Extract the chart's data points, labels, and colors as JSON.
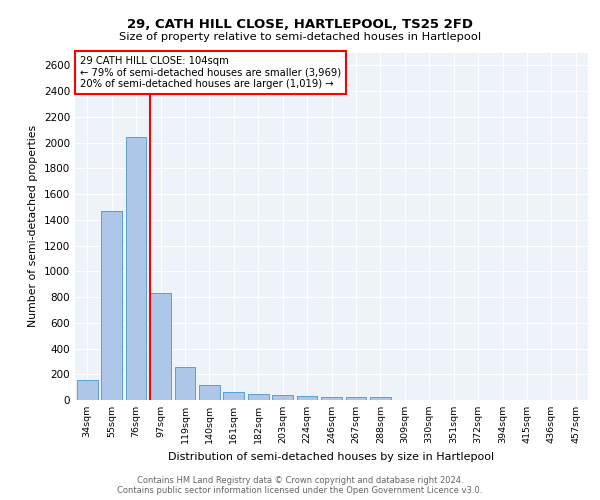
{
  "title1": "29, CATH HILL CLOSE, HARTLEPOOL, TS25 2FD",
  "title2": "Size of property relative to semi-detached houses in Hartlepool",
  "xlabel": "Distribution of semi-detached houses by size in Hartlepool",
  "ylabel": "Number of semi-detached properties",
  "categories": [
    "34sqm",
    "55sqm",
    "76sqm",
    "97sqm",
    "119sqm",
    "140sqm",
    "161sqm",
    "182sqm",
    "203sqm",
    "224sqm",
    "246sqm",
    "267sqm",
    "288sqm",
    "309sqm",
    "330sqm",
    "351sqm",
    "372sqm",
    "394sqm",
    "415sqm",
    "436sqm",
    "457sqm"
  ],
  "values": [
    155,
    1470,
    2040,
    830,
    255,
    120,
    65,
    45,
    40,
    30,
    25,
    20,
    20,
    0,
    0,
    0,
    0,
    0,
    0,
    0,
    0
  ],
  "bar_color": "#aec6e8",
  "bar_edge_color": "#5a9fd4",
  "annotation_text": "29 CATH HILL CLOSE: 104sqm\n← 79% of semi-detached houses are smaller (3,969)\n20% of semi-detached houses are larger (1,019) →",
  "footnote1": "Contains HM Land Registry data © Crown copyright and database right 2024.",
  "footnote2": "Contains public sector information licensed under the Open Government Licence v3.0.",
  "ylim": [
    0,
    2700
  ],
  "yticks": [
    0,
    200,
    400,
    600,
    800,
    1000,
    1200,
    1400,
    1600,
    1800,
    2000,
    2200,
    2400,
    2600
  ],
  "bg_color": "#eef2f9",
  "bar_width": 0.85,
  "red_line_bin": 3
}
